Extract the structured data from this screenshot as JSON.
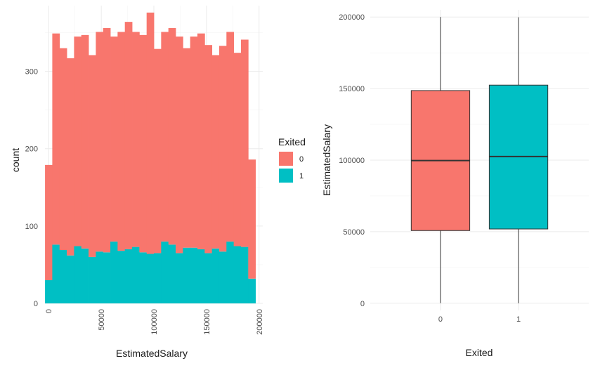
{
  "colors": {
    "exited_0": "#F8766D",
    "exited_1": "#00BFC4",
    "grid_major": "#ebebeb",
    "grid_minor": "#f5f5f5",
    "box_outline": "#333333"
  },
  "chart_data": [
    {
      "type": "bar",
      "subtype": "stacked-histogram",
      "title": "",
      "xlabel": "EstimatedSalary",
      "ylabel": "count",
      "xlim": [
        -3500,
        203500
      ],
      "ylim": [
        0,
        385
      ],
      "x_ticks": [
        0,
        50000,
        100000,
        150000,
        200000
      ],
      "x_tick_labels": [
        "0",
        "50000",
        "100000",
        "150000",
        "200000"
      ],
      "y_ticks": [
        0,
        100,
        200,
        300
      ],
      "y_tick_labels": [
        "0",
        "100",
        "200",
        "300"
      ],
      "bin_start": -3448,
      "bin_width": 6897,
      "legend": {
        "title": "Exited",
        "position": "right",
        "entries": [
          {
            "label": "0",
            "color_key": "exited_0"
          },
          {
            "label": "1",
            "color_key": "exited_1"
          }
        ]
      },
      "series": [
        {
          "name": "0",
          "values": [
            149,
            273,
            261,
            255,
            271,
            276,
            261,
            284,
            290,
            265,
            283,
            294,
            278,
            281,
            312,
            264,
            271,
            280,
            280,
            258,
            273,
            279,
            269,
            250,
            266,
            271,
            250,
            268,
            154
          ]
        },
        {
          "name": "1",
          "values": [
            30,
            76,
            69,
            62,
            74,
            71,
            60,
            67,
            66,
            80,
            68,
            70,
            73,
            66,
            64,
            65,
            80,
            76,
            65,
            72,
            72,
            70,
            65,
            71,
            67,
            80,
            74,
            73,
            32
          ]
        }
      ]
    },
    {
      "type": "box",
      "title": "",
      "xlabel": "Exited",
      "ylabel": "EstimatedSalary",
      "ylim": [
        -5000,
        205000
      ],
      "y_ticks": [
        0,
        50000,
        100000,
        150000,
        200000
      ],
      "y_tick_labels": [
        "0",
        "50000",
        "100000",
        "150000",
        "200000"
      ],
      "categories": [
        "0",
        "1"
      ],
      "boxes": [
        {
          "category": "0",
          "min": 90,
          "q1": 50800,
          "median": 99700,
          "q3": 148600,
          "max": 199990,
          "color_key": "exited_0"
        },
        {
          "category": "1",
          "min": 12,
          "q1": 51900,
          "median": 102500,
          "q3": 152400,
          "max": 199800,
          "color_key": "exited_1"
        }
      ]
    }
  ]
}
